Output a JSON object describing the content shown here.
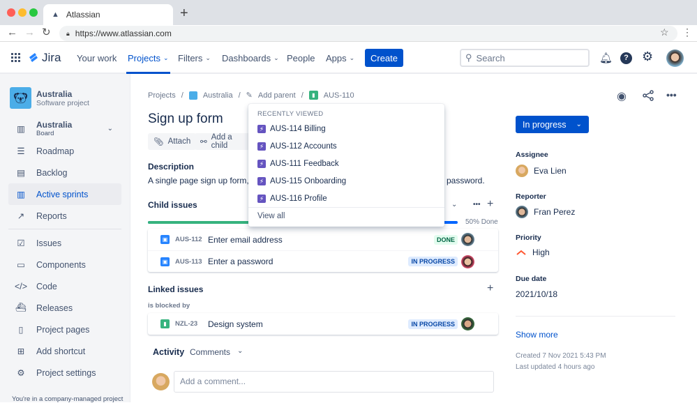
{
  "browser": {
    "tab_title": "Atlassian",
    "url": "https://www.atlassian.com"
  },
  "nav": {
    "logo": "Jira",
    "items": [
      {
        "label": "Your work"
      },
      {
        "label": "Projects",
        "active": true
      },
      {
        "label": "Filters"
      },
      {
        "label": "Dashboards"
      },
      {
        "label": "People"
      },
      {
        "label": "Apps"
      }
    ],
    "create": "Create",
    "search_placeholder": "Search"
  },
  "project": {
    "name": "Australia",
    "type": "Software project"
  },
  "sidebar": {
    "board": {
      "label": "Australia",
      "sub": "Board"
    },
    "items": [
      {
        "label": "Roadmap",
        "icon": "roadmap-icon"
      },
      {
        "label": "Backlog",
        "icon": "backlog-icon"
      },
      {
        "label": "Active sprints",
        "icon": "board-columns-icon",
        "active": true
      },
      {
        "label": "Reports",
        "icon": "chart-icon"
      }
    ],
    "items2": [
      {
        "label": "Issues",
        "icon": "issues-icon"
      },
      {
        "label": "Components",
        "icon": "components-icon"
      },
      {
        "label": "Code",
        "icon": "code-icon"
      },
      {
        "label": "Releases",
        "icon": "ship-icon"
      },
      {
        "label": "Project pages",
        "icon": "page-icon"
      },
      {
        "label": "Add shortcut",
        "icon": "add-shortcut-icon"
      },
      {
        "label": "Project settings",
        "icon": "gear-icon"
      }
    ],
    "footer": "You're in a company-managed project"
  },
  "breadcrumb": [
    "Projects",
    "Australia",
    "Add parent",
    "AUS-110"
  ],
  "issue": {
    "title": "Sign up form",
    "attach": "Attach",
    "add_child": "Add a child",
    "description_label": "Description",
    "description_start": "A single page sign up form,",
    "description_end": "password.",
    "child_label": "Child issues",
    "progress_done": 50,
    "progress_text": "50% Done",
    "children": [
      {
        "key": "AUS-112",
        "summary": "Enter email address",
        "status": "DONE"
      },
      {
        "key": "AUS-113",
        "summary": "Enter a password",
        "status": "IN PROGRESS"
      }
    ],
    "linked_label": "Linked issues",
    "relation": "is blocked by",
    "linked": [
      {
        "key": "NZL-23",
        "summary": "Design system",
        "status": "IN PROGRESS"
      }
    ],
    "activity": "Activity",
    "activity_filter": "Comments",
    "comment_placeholder": "Add a comment..."
  },
  "dropdown": {
    "header": "RECENTLY VIEWED",
    "items": [
      "AUS-114 Billing",
      "AUS-112 Accounts",
      "AUS-111 Feedback",
      "AUS-115 Onboarding",
      "AUS-116 Profile"
    ],
    "view_all": "View all"
  },
  "details": {
    "status": "In progress",
    "assignee_label": "Assignee",
    "assignee": "Eva Lien",
    "reporter_label": "Reporter",
    "reporter": "Fran Perez",
    "priority_label": "Priority",
    "priority": "High",
    "due_label": "Due date",
    "due": "2021/10/18",
    "show_more": "Show more",
    "created": "Created 7 Nov 2021 5:43 PM",
    "updated": "Last updated 4 hours ago"
  },
  "colors": {
    "brand": "#0052cc",
    "done": "#36b37e",
    "priority_high": "#ff5630",
    "story": "#36b37e",
    "task": "#2684ff",
    "epic": "#6554c0"
  }
}
